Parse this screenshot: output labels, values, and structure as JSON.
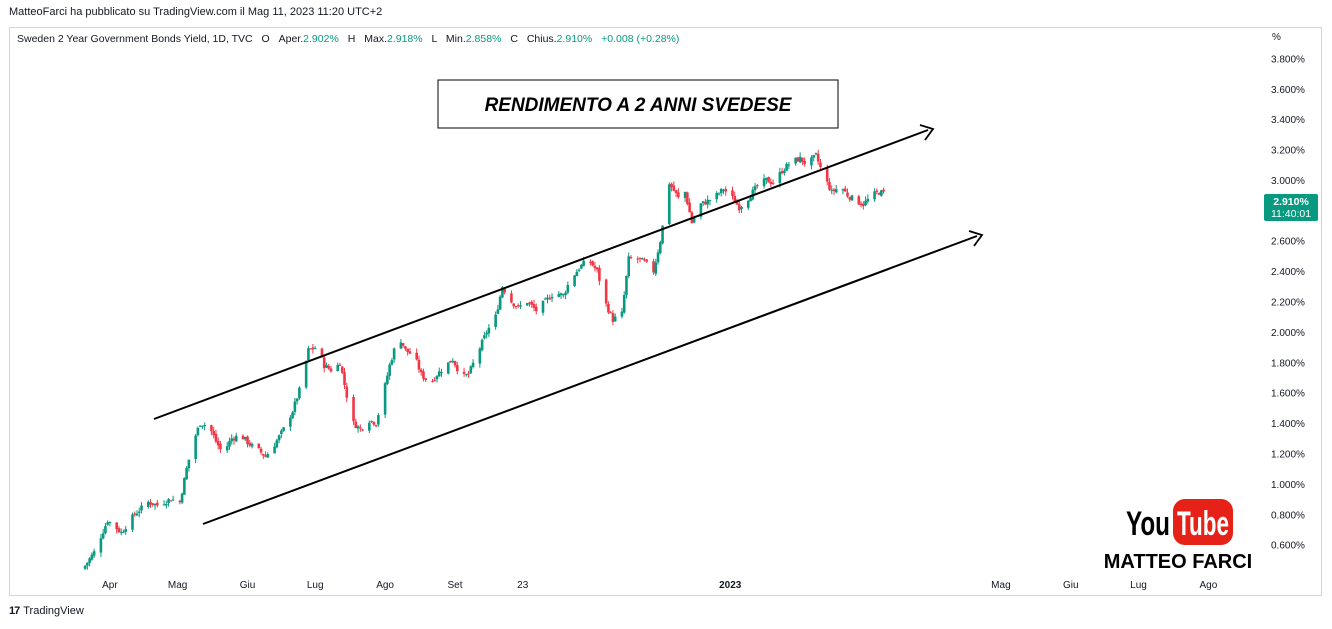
{
  "header": {
    "published": "MatteoFarci ha pubblicato su TradingView.com il Mag 11, 2023 11:20 UTC+2"
  },
  "legend": {
    "symbol": "Sweden 2 Year Government Bonds Yield, 1D, TVC",
    "open_label": "O",
    "open_word": "Aper.",
    "open": "2.902%",
    "high_label": "H",
    "high_word": "Max.",
    "high": "2.918%",
    "low_label": "L",
    "low_word": "Min.",
    "low": "2.858%",
    "close_label": "C",
    "close_word": "Chius.",
    "close": "2.910%",
    "change": "+0.008 (+0.28%)"
  },
  "price_tag": {
    "value": "2.910%",
    "time": "11:40:01"
  },
  "annotation_title": "RENDIMENTO A 2 ANNI SVEDESE",
  "branding": {
    "youtube_you": "You",
    "youtube_tube": "Tube",
    "author": "MATTEO FARCI"
  },
  "footer": {
    "brand": "TradingView",
    "logo": "17"
  },
  "colors": {
    "up": "#089981",
    "down": "#f23645",
    "grid": "#f0f3fa",
    "axis_text": "#131722"
  },
  "chart_data": {
    "type": "candlestick",
    "title": "Sweden 2 Year Government Bonds Yield, 1D, TVC",
    "y_unit": "%",
    "ylim": [
      0.42,
      4.0
    ],
    "y_ticks": [
      "3.800%",
      "3.600%",
      "3.400%",
      "3.200%",
      "3.000%",
      "2.800%",
      "2.600%",
      "2.400%",
      "2.200%",
      "2.000%",
      "1.800%",
      "1.600%",
      "1.400%",
      "1.200%",
      "1.000%",
      "0.800%",
      "0.600%"
    ],
    "x_ticks": [
      "Apr",
      "Mag",
      "Giu",
      "Lug",
      "Ago",
      "Set",
      "23",
      "2023",
      "Mag",
      "Giu",
      "Lug",
      "Ago"
    ],
    "trend_points": [
      [
        "2022-03-20",
        0.44
      ],
      [
        "2022-03-25",
        0.55
      ],
      [
        "2022-03-31",
        0.76
      ],
      [
        "2022-04-06",
        0.68
      ],
      [
        "2022-04-12",
        0.8
      ],
      [
        "2022-04-18",
        0.88
      ],
      [
        "2022-04-22",
        0.86
      ],
      [
        "2022-04-28",
        0.9
      ],
      [
        "2022-05-02",
        0.88
      ],
      [
        "2022-05-05",
        1.1
      ],
      [
        "2022-05-08",
        1.28
      ],
      [
        "2022-05-11",
        1.4
      ],
      [
        "2022-05-15",
        1.38
      ],
      [
        "2022-05-18",
        1.28
      ],
      [
        "2022-05-21",
        1.2
      ],
      [
        "2022-05-25",
        1.3
      ],
      [
        "2022-05-29",
        1.32
      ],
      [
        "2022-06-02",
        1.26
      ],
      [
        "2022-06-06",
        1.22
      ],
      [
        "2022-06-09",
        1.18
      ],
      [
        "2022-06-13",
        1.26
      ],
      [
        "2022-06-17",
        1.36
      ],
      [
        "2022-06-21",
        1.48
      ],
      [
        "2022-06-25",
        1.66
      ],
      [
        "2022-06-28",
        1.88
      ],
      [
        "2022-07-02",
        1.9
      ],
      [
        "2022-07-05",
        1.78
      ],
      [
        "2022-07-09",
        1.74
      ],
      [
        "2022-07-12",
        1.8
      ],
      [
        "2022-07-15",
        1.58
      ],
      [
        "2022-07-18",
        1.4
      ],
      [
        "2022-07-21",
        1.36
      ],
      [
        "2022-07-25",
        1.42
      ],
      [
        "2022-07-28",
        1.4
      ],
      [
        "2022-07-31",
        1.58
      ],
      [
        "2022-08-03",
        1.78
      ],
      [
        "2022-08-07",
        1.98
      ],
      [
        "2022-08-10",
        1.88
      ],
      [
        "2022-08-14",
        1.84
      ],
      [
        "2022-08-17",
        1.72
      ],
      [
        "2022-08-21",
        1.66
      ],
      [
        "2022-08-24",
        1.72
      ],
      [
        "2022-08-28",
        1.78
      ],
      [
        "2022-08-31",
        1.82
      ],
      [
        "2022-09-04",
        1.7
      ],
      [
        "2022-09-07",
        1.72
      ],
      [
        "2022-09-11",
        1.86
      ],
      [
        "2022-09-15",
        2.0
      ],
      [
        "2022-09-19",
        2.1
      ],
      [
        "2022-09-22",
        2.3
      ],
      [
        "2022-09-26",
        2.2
      ],
      [
        "2022-09-29",
        2.16
      ],
      [
        "2022-10-03",
        2.2
      ],
      [
        "2022-10-07",
        2.14
      ],
      [
        "2022-10-11",
        2.2
      ],
      [
        "2022-10-15",
        2.26
      ],
      [
        "2022-10-19",
        2.24
      ],
      [
        "2022-10-22",
        2.34
      ],
      [
        "2022-10-26",
        2.42
      ],
      [
        "2022-10-30",
        2.48
      ],
      [
        "2022-11-03",
        2.4
      ],
      [
        "2022-11-07",
        2.18
      ],
      [
        "2022-11-10",
        2.08
      ],
      [
        "2022-11-14",
        2.12
      ],
      [
        "2022-11-17",
        2.48
      ],
      [
        "2022-11-21",
        2.48
      ],
      [
        "2022-11-24",
        2.46
      ],
      [
        "2022-11-28",
        2.4
      ],
      [
        "2022-12-01",
        2.6
      ],
      [
        "2022-12-05",
        2.98
      ],
      [
        "2022-12-09",
        2.88
      ],
      [
        "2022-12-12",
        2.92
      ],
      [
        "2022-12-15",
        2.72
      ],
      [
        "2022-12-19",
        2.84
      ],
      [
        "2022-12-22",
        2.86
      ],
      [
        "2022-12-26",
        2.9
      ],
      [
        "2022-12-29",
        2.94
      ],
      [
        "2023-01-02",
        2.88
      ],
      [
        "2023-01-05",
        2.82
      ],
      [
        "2023-01-09",
        2.88
      ],
      [
        "2023-01-13",
        2.96
      ],
      [
        "2023-01-17",
        3.0
      ],
      [
        "2023-01-20",
        2.98
      ],
      [
        "2023-01-24",
        3.06
      ],
      [
        "2023-01-28",
        3.12
      ],
      [
        "2023-02-01",
        3.14
      ],
      [
        "2023-02-04",
        3.1
      ],
      [
        "2023-02-08",
        3.16
      ],
      [
        "2023-02-11",
        3.04
      ],
      [
        "2023-02-15",
        2.92
      ],
      [
        "2023-02-19",
        2.96
      ],
      [
        "2023-02-22",
        2.9
      ],
      [
        "2023-02-26",
        2.86
      ],
      [
        "2023-03-01",
        2.84
      ],
      [
        "2023-03-05",
        2.9
      ],
      [
        "2023-03-08",
        2.92
      ],
      [
        "2023-03-11",
        2.91
      ]
    ],
    "current_value": 2.91
  }
}
